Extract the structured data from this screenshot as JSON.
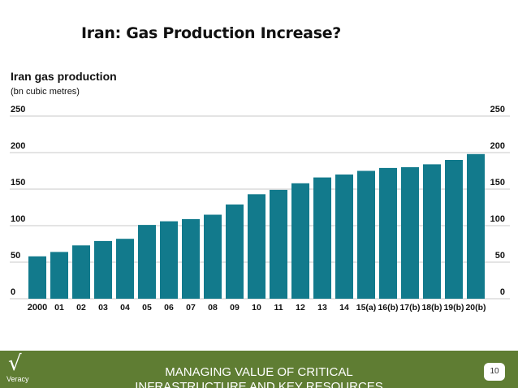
{
  "slide": {
    "title": "Iran: Gas Production Increase?",
    "footer_line1": "MANAGING VALUE OF  CRITICAL",
    "footer_line2": "INFRASTRUCTURE AND KEY RESOURCES",
    "page_number": "10",
    "logo_text": "Veracy",
    "logo_mark": "√"
  },
  "chart_data": {
    "type": "bar",
    "title": "Iran gas production",
    "subtitle": "(bn cubic metres)",
    "categories": [
      "2000",
      "01",
      "02",
      "03",
      "04",
      "05",
      "06",
      "07",
      "08",
      "09",
      "10",
      "11",
      "12",
      "13",
      "14",
      "15(a)",
      "16(b)",
      "17(b)",
      "18(b)",
      "19(b)",
      "20(b)"
    ],
    "values": [
      58,
      64,
      73,
      79,
      82,
      101,
      106,
      109,
      115,
      129,
      143,
      149,
      158,
      166,
      170,
      175,
      179,
      180,
      184,
      190,
      198
    ],
    "ylim": [
      0,
      250
    ],
    "yticks": [
      "0",
      "50",
      "100",
      "150",
      "200",
      "250"
    ],
    "grid": true,
    "bar_color": "#127a8c",
    "grid_color": "#c9c9c9"
  }
}
